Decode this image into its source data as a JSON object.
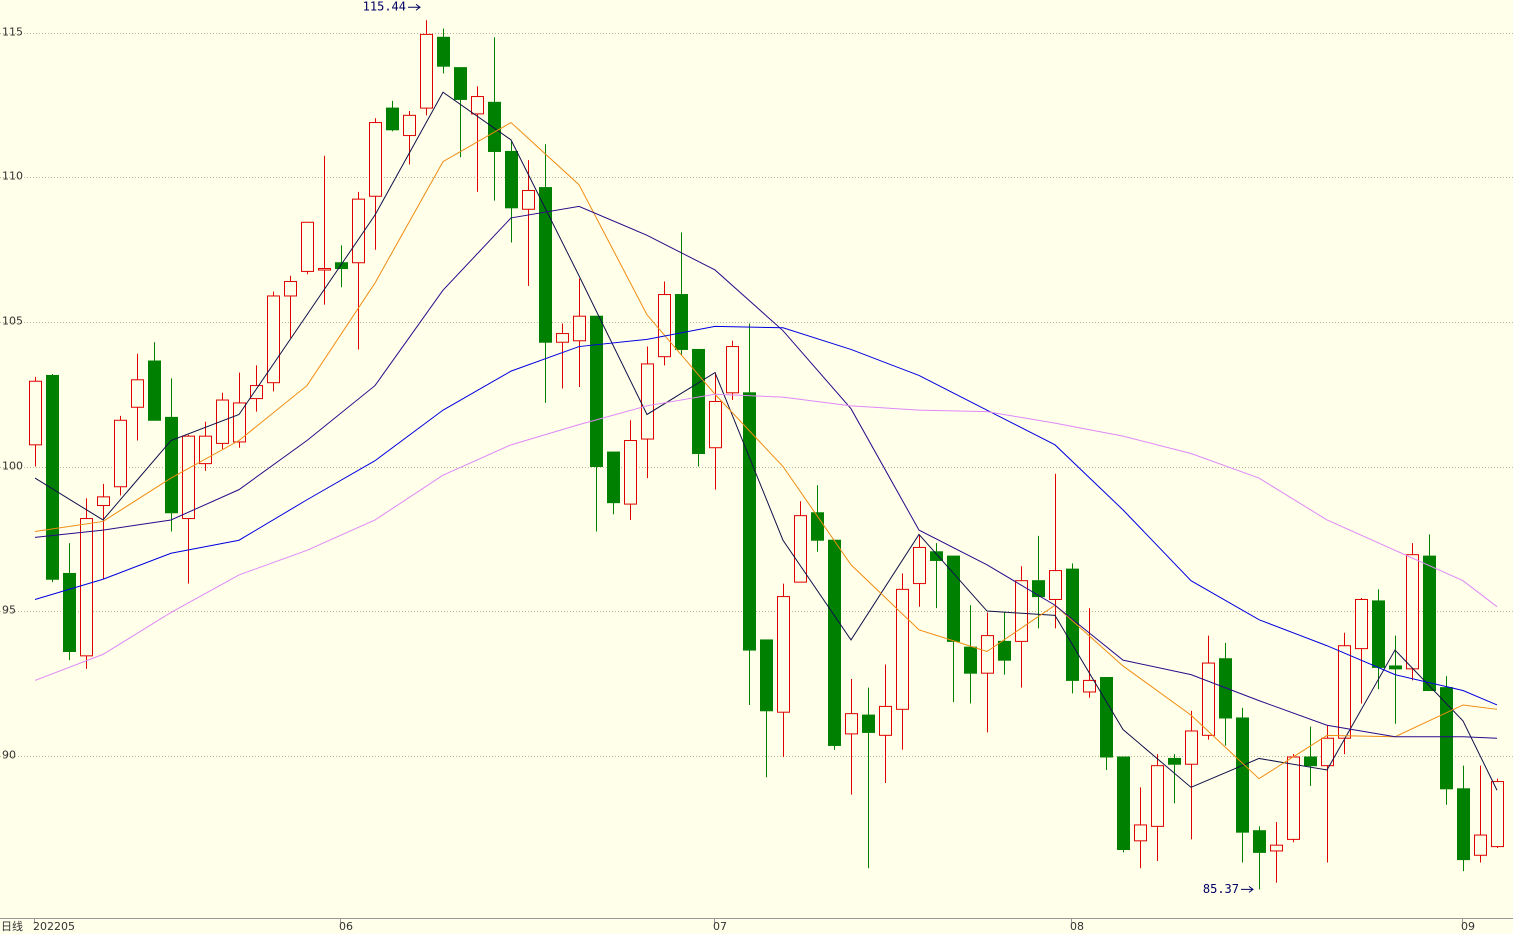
{
  "chart_data": {
    "type": "candlestick",
    "period_label": "日线",
    "categories": [
      "202205",
      null,
      null,
      null,
      null,
      null,
      null,
      null,
      null,
      null,
      null,
      null,
      null,
      null,
      null,
      null,
      null,
      null,
      "06",
      null,
      null,
      null,
      null,
      null,
      null,
      null,
      null,
      null,
      null,
      null,
      null,
      null,
      null,
      null,
      null,
      null,
      null,
      null,
      null,
      null,
      "07",
      null,
      null,
      null,
      null,
      null,
      null,
      null,
      null,
      null,
      null,
      null,
      null,
      null,
      null,
      null,
      null,
      null,
      null,
      null,
      null,
      "08",
      null,
      null,
      null,
      null,
      null,
      null,
      null,
      null,
      null,
      null,
      null,
      null,
      null,
      null,
      null,
      null,
      null,
      null,
      null,
      null,
      null,
      null,
      "09",
      null,
      null
    ],
    "open": [
      100.75,
      103.15,
      96.3,
      93.45,
      98.65,
      99.3,
      102.05,
      103.65,
      101.7,
      98.2,
      100.1,
      100.8,
      100.85,
      102.35,
      102.9,
      105.9,
      106.75,
      106.8,
      107.05,
      107.05,
      109.35,
      112.4,
      111.45,
      112.4,
      114.85,
      113.8,
      112.2,
      112.6,
      110.9,
      108.9,
      109.65,
      104.3,
      104.35,
      105.2,
      100.5,
      98.7,
      100.95,
      103.8,
      105.95,
      104.05,
      100.65,
      102.55,
      102.55,
      94.0,
      91.5,
      96.0,
      98.4,
      97.45,
      90.75,
      91.4,
      90.7,
      91.6,
      95.95,
      97.05,
      96.9,
      93.75,
      92.85,
      93.95,
      93.95,
      96.05,
      95.4,
      96.45,
      92.2,
      92.7,
      89.95,
      87.05,
      87.55,
      89.9,
      89.7,
      90.7,
      93.35,
      91.3,
      87.4,
      86.7,
      87.1,
      89.95,
      89.65,
      90.6,
      93.7,
      95.35,
      93.1,
      93.0,
      96.9,
      92.35,
      88.85,
      86.55,
      86.85
    ],
    "high": [
      103.1,
      103.2,
      97.35,
      98.9,
      99.4,
      101.75,
      103.9,
      104.3,
      103.05,
      101.1,
      101.55,
      102.55,
      103.25,
      103.5,
      106.05,
      106.6,
      108.45,
      110.75,
      107.65,
      109.5,
      112.05,
      112.65,
      112.3,
      115.44,
      115.15,
      113.8,
      113.15,
      114.85,
      111.25,
      110.6,
      111.15,
      104.95,
      106.5,
      105.2,
      100.5,
      101.6,
      104.15,
      106.4,
      108.1,
      104.05,
      103.25,
      104.35,
      104.95,
      94.0,
      95.95,
      98.8,
      99.35,
      97.45,
      92.65,
      92.35,
      93.15,
      96.3,
      97.65,
      97.35,
      96.9,
      95.2,
      94.95,
      94.95,
      96.55,
      97.6,
      99.75,
      96.65,
      95.1,
      92.7,
      89.95,
      88.9,
      90.05,
      90.05,
      91.55,
      94.15,
      93.9,
      91.65,
      87.55,
      87.7,
      90.05,
      91.0,
      91.05,
      94.25,
      95.45,
      95.75,
      94.15,
      97.35,
      97.65,
      92.75,
      89.65,
      89.65,
      89.2
    ],
    "low": [
      100.0,
      96.0,
      93.3,
      93.0,
      96.1,
      99.0,
      100.9,
      101.6,
      97.75,
      95.95,
      99.85,
      100.6,
      100.65,
      101.9,
      102.6,
      104.45,
      106.65,
      105.6,
      106.2,
      104.05,
      107.5,
      111.6,
      110.45,
      112.15,
      113.6,
      110.7,
      109.5,
      109.2,
      107.75,
      106.25,
      102.2,
      102.7,
      102.75,
      97.75,
      98.35,
      98.15,
      99.6,
      103.5,
      103.85,
      100.0,
      99.2,
      102.3,
      91.75,
      89.25,
      89.95,
      96.0,
      97.05,
      90.2,
      88.65,
      86.1,
      89.05,
      90.2,
      95.15,
      95.1,
      91.85,
      91.8,
      90.8,
      92.8,
      92.35,
      94.4,
      94.4,
      92.15,
      92.0,
      89.5,
      86.65,
      86.1,
      86.35,
      88.35,
      87.1,
      90.55,
      90.35,
      86.3,
      85.37,
      85.6,
      87.0,
      88.95,
      86.3,
      90.05,
      91.8,
      92.3,
      91.1,
      92.6,
      92.25,
      88.3,
      86.0,
      86.3,
      86.8
    ],
    "close": [
      102.95,
      96.1,
      93.6,
      98.2,
      98.95,
      101.6,
      103.0,
      101.6,
      98.4,
      101.05,
      101.05,
      102.3,
      102.2,
      102.8,
      105.9,
      106.4,
      108.45,
      106.85,
      106.85,
      109.25,
      111.9,
      111.65,
      112.15,
      114.95,
      113.85,
      112.7,
      112.8,
      110.9,
      108.95,
      109.55,
      104.3,
      104.6,
      105.2,
      100.0,
      98.75,
      100.9,
      103.55,
      105.95,
      104.05,
      100.45,
      102.25,
      104.15,
      93.65,
      91.55,
      95.5,
      98.3,
      97.45,
      90.35,
      91.45,
      90.8,
      91.7,
      95.75,
      97.2,
      96.75,
      93.95,
      92.85,
      94.15,
      93.3,
      96.05,
      95.5,
      96.4,
      92.6,
      92.6,
      89.95,
      86.75,
      87.6,
      89.65,
      89.7,
      90.85,
      93.2,
      91.3,
      87.35,
      86.65,
      86.9,
      89.95,
      89.65,
      90.6,
      93.8,
      95.4,
      93.05,
      93.0,
      96.95,
      92.25,
      88.85,
      86.4,
      87.25,
      89.1
    ],
    "up_color": "#e00000",
    "down_color": "#008000",
    "lines": [
      {
        "color": "#10104a",
        "x": [
          0,
          4,
          8,
          12,
          16,
          20,
          24,
          28,
          32,
          36,
          40,
          44,
          48,
          52,
          56,
          60,
          64,
          68,
          72,
          76,
          80,
          84,
          86
        ],
        "values": [
          99.6,
          98.15,
          100.9,
          101.8,
          105.25,
          108.7,
          112.95,
          111.3,
          106.6,
          101.8,
          103.25,
          97.45,
          94.0,
          97.65,
          95.0,
          94.85,
          90.9,
          88.9,
          89.9,
          89.5,
          93.65,
          91.2,
          88.8
        ]
      },
      {
        "color": "#f08c10",
        "x": [
          0,
          4,
          8,
          12,
          16,
          20,
          24,
          28,
          32,
          36,
          40,
          44,
          48,
          52,
          56,
          60,
          64,
          68,
          72,
          76,
          80,
          84,
          86
        ],
        "values": [
          97.75,
          98.1,
          99.6,
          100.9,
          102.8,
          106.35,
          110.55,
          111.9,
          109.75,
          105.25,
          102.5,
          100.0,
          96.6,
          94.35,
          93.6,
          95.2,
          93.1,
          91.4,
          89.2,
          90.7,
          90.65,
          91.75,
          91.6
        ]
      },
      {
        "color": "#2a0a8a",
        "x": [
          0,
          4,
          8,
          12,
          16,
          20,
          24,
          28,
          32,
          36,
          40,
          44,
          48,
          52,
          56,
          60,
          64,
          68,
          72,
          76,
          80,
          84,
          86
        ],
        "values": [
          97.55,
          97.8,
          98.15,
          99.2,
          100.9,
          102.8,
          106.1,
          108.6,
          109.0,
          108.0,
          106.8,
          104.7,
          102.0,
          97.8,
          96.6,
          95.2,
          93.3,
          92.8,
          91.9,
          91.05,
          90.65,
          90.65,
          90.6
        ]
      },
      {
        "color": "#0000e0",
        "x": [
          0,
          4,
          8,
          12,
          16,
          20,
          24,
          28,
          32,
          36,
          40,
          44,
          48,
          52,
          56,
          60,
          64,
          68,
          72,
          76,
          80,
          84,
          86
        ],
        "values": [
          95.4,
          96.1,
          97.0,
          97.45,
          98.85,
          100.2,
          101.95,
          103.3,
          104.15,
          104.4,
          104.85,
          104.8,
          104.05,
          103.15,
          101.95,
          100.75,
          98.5,
          96.05,
          94.7,
          93.8,
          92.8,
          92.25,
          91.75
        ]
      },
      {
        "color": "#e088f8",
        "x": [
          0,
          4,
          8,
          12,
          16,
          20,
          24,
          28,
          32,
          36,
          40,
          44,
          48,
          52,
          56,
          60,
          64,
          68,
          72,
          76,
          80,
          84,
          86
        ],
        "values": [
          92.6,
          93.5,
          94.95,
          96.25,
          97.1,
          98.15,
          99.7,
          100.75,
          101.45,
          102.1,
          102.5,
          102.4,
          102.1,
          101.95,
          101.9,
          101.5,
          101.05,
          100.45,
          99.6,
          98.15,
          97.1,
          96.05,
          95.15
        ]
      }
    ],
    "ylim": [
      84.38,
      116.14
    ],
    "yticks": [
      90,
      95,
      100,
      105,
      110,
      115
    ],
    "grid": true
  }
}
